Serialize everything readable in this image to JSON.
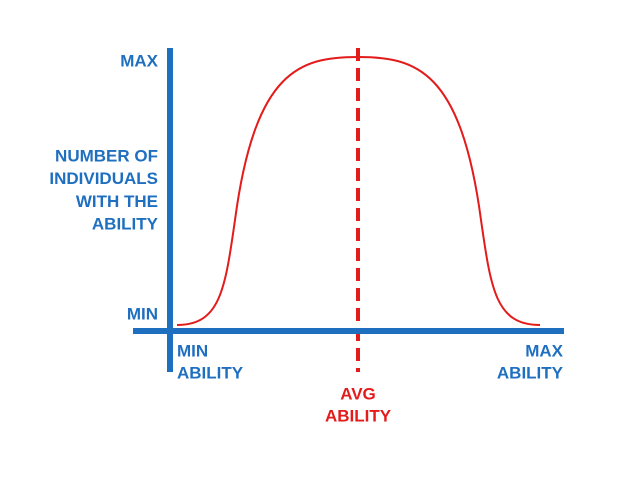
{
  "y_axis": {
    "max_label": "MAX",
    "min_label": "MIN",
    "title_lines": [
      "NUMBER OF",
      "INDIVIDUALS",
      "WITH THE",
      "ABILITY"
    ]
  },
  "x_axis": {
    "min_lines": [
      "MIN",
      "ABILITY"
    ],
    "max_lines": [
      "MAX",
      "ABILITY"
    ],
    "avg_lines": [
      "AVG",
      "ABILITY"
    ]
  }
}
